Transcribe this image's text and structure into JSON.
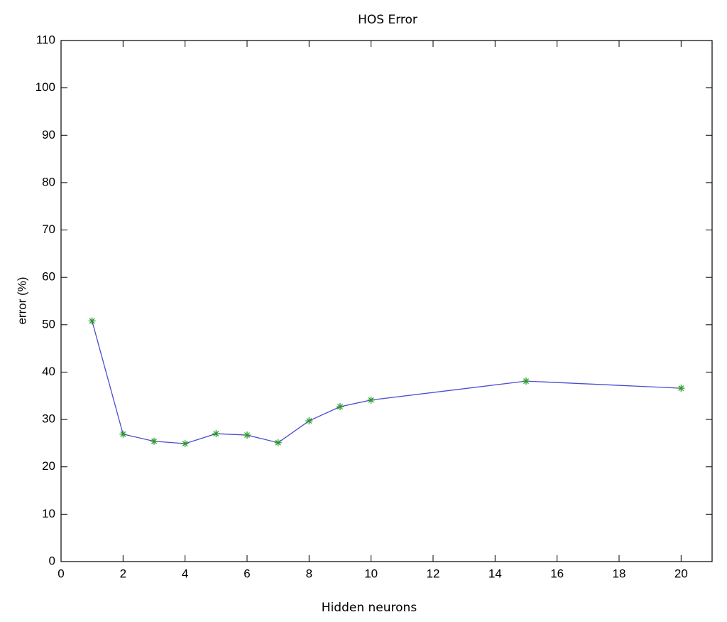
{
  "chart_data": {
    "type": "line",
    "title": "HOS Error",
    "x_label": "Hidden neurons",
    "y_label": "error (%)",
    "x": [
      1,
      2,
      3,
      4,
      5,
      6,
      7,
      8,
      9,
      10,
      15,
      20
    ],
    "series": [
      {
        "color": "#4b4bcf",
        "marker_color": "#2a9a2a",
        "marker": "*",
        "values": [
          50.8,
          26.9,
          25.4,
          24.9,
          27.0,
          26.7,
          25.1,
          29.7,
          32.7,
          34.1,
          38.1,
          36.6
        ]
      }
    ],
    "xlim": [
      0,
      21
    ],
    "xticks": [
      0,
      2,
      4,
      6,
      8,
      10,
      12,
      14,
      16,
      18,
      20
    ],
    "ylim": [
      0,
      110
    ],
    "yticks": [
      0,
      10,
      20,
      30,
      40,
      50,
      60,
      70,
      80,
      90,
      100,
      110
    ],
    "grid": false
  }
}
